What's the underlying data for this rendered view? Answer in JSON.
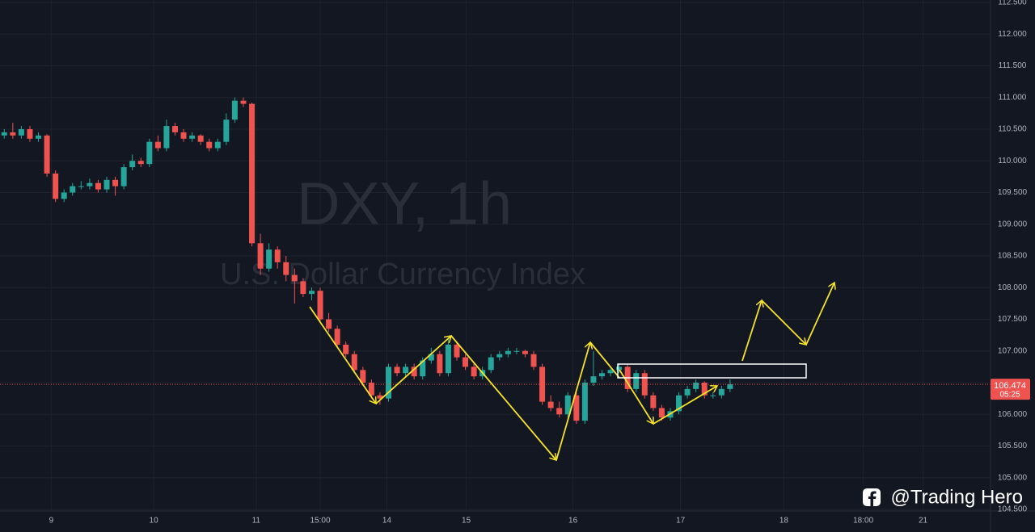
{
  "chart_data": {
    "type": "candlestick",
    "title": "DXY, 1h",
    "subtitle": "U.S. Dollar Currency Index",
    "up_color": "#26a69a",
    "down_color": "#ef5350",
    "ohlc": [
      [
        110.4,
        110.5,
        110.35,
        110.45
      ],
      [
        110.45,
        110.6,
        110.35,
        110.4
      ],
      [
        110.4,
        110.55,
        110.35,
        110.5
      ],
      [
        110.5,
        110.55,
        110.3,
        110.35
      ],
      [
        110.35,
        110.45,
        110.3,
        110.4
      ],
      [
        110.4,
        110.42,
        109.75,
        109.8
      ],
      [
        109.8,
        109.85,
        109.35,
        109.4
      ],
      [
        109.4,
        109.55,
        109.35,
        109.5
      ],
      [
        109.5,
        109.65,
        109.45,
        109.6
      ],
      [
        109.6,
        109.68,
        109.55,
        109.6
      ],
      [
        109.6,
        109.72,
        109.55,
        109.65
      ],
      [
        109.65,
        109.7,
        109.5,
        109.55
      ],
      [
        109.55,
        109.75,
        109.5,
        109.7
      ],
      [
        109.7,
        109.75,
        109.45,
        109.6
      ],
      [
        109.6,
        109.95,
        109.55,
        109.9
      ],
      [
        109.9,
        110.1,
        109.85,
        110.0
      ],
      [
        110.0,
        110.05,
        109.9,
        109.95
      ],
      [
        109.95,
        110.35,
        109.9,
        110.3
      ],
      [
        110.3,
        110.4,
        110.15,
        110.2
      ],
      [
        110.2,
        110.65,
        110.15,
        110.55
      ],
      [
        110.55,
        110.6,
        110.4,
        110.45
      ],
      [
        110.45,
        110.5,
        110.3,
        110.35
      ],
      [
        110.35,
        110.45,
        110.3,
        110.4
      ],
      [
        110.4,
        110.42,
        110.25,
        110.3
      ],
      [
        110.3,
        110.35,
        110.15,
        110.2
      ],
      [
        110.2,
        110.35,
        110.15,
        110.3
      ],
      [
        110.3,
        110.75,
        110.25,
        110.65
      ],
      [
        110.65,
        111.0,
        110.6,
        110.95
      ],
      [
        110.95,
        111.0,
        110.85,
        110.9
      ],
      [
        110.9,
        110.92,
        108.65,
        108.7
      ],
      [
        108.7,
        108.85,
        108.2,
        108.3
      ],
      [
        108.3,
        108.7,
        108.25,
        108.6
      ],
      [
        108.6,
        108.65,
        108.3,
        108.4
      ],
      [
        108.4,
        108.5,
        108.1,
        108.2
      ],
      [
        108.2,
        108.3,
        107.75,
        108.1
      ],
      [
        108.1,
        108.15,
        107.85,
        107.9
      ],
      [
        107.9,
        108.0,
        107.8,
        107.95
      ],
      [
        107.95,
        108.0,
        107.45,
        107.5
      ],
      [
        107.5,
        107.6,
        107.3,
        107.35
      ],
      [
        107.35,
        107.4,
        107.05,
        107.1
      ],
      [
        107.1,
        107.15,
        106.9,
        106.95
      ],
      [
        106.95,
        107.0,
        106.65,
        106.7
      ],
      [
        106.7,
        106.75,
        106.45,
        106.5
      ],
      [
        106.5,
        106.55,
        106.25,
        106.3
      ],
      [
        106.3,
        106.35,
        106.15,
        106.25
      ],
      [
        106.25,
        106.8,
        106.2,
        106.75
      ],
      [
        106.75,
        106.8,
        106.6,
        106.65
      ],
      [
        106.65,
        106.8,
        106.6,
        106.75
      ],
      [
        106.75,
        106.8,
        106.55,
        106.6
      ],
      [
        106.6,
        106.9,
        106.55,
        106.85
      ],
      [
        106.85,
        107.05,
        106.8,
        106.95
      ],
      [
        106.95,
        107.0,
        106.6,
        106.65
      ],
      [
        106.65,
        107.2,
        106.6,
        107.1
      ],
      [
        107.1,
        107.15,
        106.85,
        106.9
      ],
      [
        106.9,
        106.95,
        106.7,
        106.75
      ],
      [
        106.75,
        106.8,
        106.55,
        106.6
      ],
      [
        106.6,
        106.75,
        106.55,
        106.7
      ],
      [
        106.7,
        106.95,
        106.65,
        106.9
      ],
      [
        106.9,
        107.0,
        106.85,
        106.95
      ],
      [
        106.95,
        107.05,
        106.9,
        107.0
      ],
      [
        107.0,
        107.05,
        106.95,
        107.0
      ],
      [
        107.0,
        107.02,
        106.9,
        106.95
      ],
      [
        106.95,
        107.0,
        106.7,
        106.75
      ],
      [
        106.75,
        106.8,
        106.15,
        106.2
      ],
      [
        106.2,
        106.3,
        106.05,
        106.1
      ],
      [
        106.1,
        106.2,
        105.95,
        106.0
      ],
      [
        106.0,
        106.35,
        105.95,
        106.3
      ],
      [
        106.3,
        106.35,
        105.85,
        105.9
      ],
      [
        105.9,
        106.55,
        105.85,
        106.5
      ],
      [
        106.5,
        107.0,
        106.45,
        106.6
      ],
      [
        106.6,
        106.7,
        106.55,
        106.65
      ],
      [
        106.65,
        106.72,
        106.6,
        106.7
      ],
      [
        106.7,
        106.8,
        106.65,
        106.75
      ],
      [
        106.75,
        106.78,
        106.35,
        106.4
      ],
      [
        106.4,
        106.7,
        106.35,
        106.65
      ],
      [
        106.65,
        106.7,
        106.25,
        106.3
      ],
      [
        106.3,
        106.35,
        106.05,
        106.1
      ],
      [
        106.1,
        106.15,
        105.9,
        105.95
      ],
      [
        105.95,
        106.1,
        105.9,
        106.05
      ],
      [
        106.05,
        106.35,
        106.0,
        106.3
      ],
      [
        106.3,
        106.45,
        106.25,
        106.4
      ],
      [
        106.4,
        106.55,
        106.35,
        106.5
      ],
      [
        106.5,
        106.52,
        106.25,
        106.3
      ],
      [
        106.3,
        106.35,
        106.25,
        106.3
      ],
      [
        106.3,
        106.45,
        106.25,
        106.4
      ],
      [
        106.4,
        106.55,
        106.35,
        106.474
      ]
    ],
    "xlim": [
      -0.5,
      115.5
    ],
    "xticks": [
      {
        "value": 5.5,
        "label": "9"
      },
      {
        "value": 17.5,
        "label": "10"
      },
      {
        "value": 29.5,
        "label": "11"
      },
      {
        "value": 37,
        "label": "15:00"
      },
      {
        "value": 44.8,
        "label": "14"
      },
      {
        "value": 54.1,
        "label": "15"
      },
      {
        "value": 66.6,
        "label": "16"
      },
      {
        "value": 79.2,
        "label": "17"
      },
      {
        "value": 91.3,
        "label": "18"
      },
      {
        "value": 100.6,
        "label": "18:00"
      },
      {
        "value": 107.6,
        "label": "21"
      }
    ],
    "ylim": [
      104.475,
      112.538
    ],
    "yticks": [
      {
        "value": 104.5,
        "label": "104.500"
      },
      {
        "value": 105,
        "label": "105.000"
      },
      {
        "value": 105.5,
        "label": "105.500"
      },
      {
        "value": 106,
        "label": "106.000"
      },
      {
        "value": 106.5,
        "label": "106.500"
      },
      {
        "value": 107,
        "label": "107.000"
      },
      {
        "value": 107.5,
        "label": "107.500"
      },
      {
        "value": 108,
        "label": "108.000"
      },
      {
        "value": 108.5,
        "label": "108.500"
      },
      {
        "value": 109,
        "label": "109.000"
      },
      {
        "value": 109.5,
        "label": "109.500"
      },
      {
        "value": 110,
        "label": "110.000"
      },
      {
        "value": 110.5,
        "label": "110.500"
      },
      {
        "value": 111,
        "label": "111.000"
      },
      {
        "value": 111.5,
        "label": "111.500"
      },
      {
        "value": 112,
        "label": "112.000"
      },
      {
        "value": 112.5,
        "label": "112.500"
      }
    ],
    "grid": true,
    "last_price": 106.474,
    "countdown": "05:25",
    "credit": "@Trading Hero"
  }
}
